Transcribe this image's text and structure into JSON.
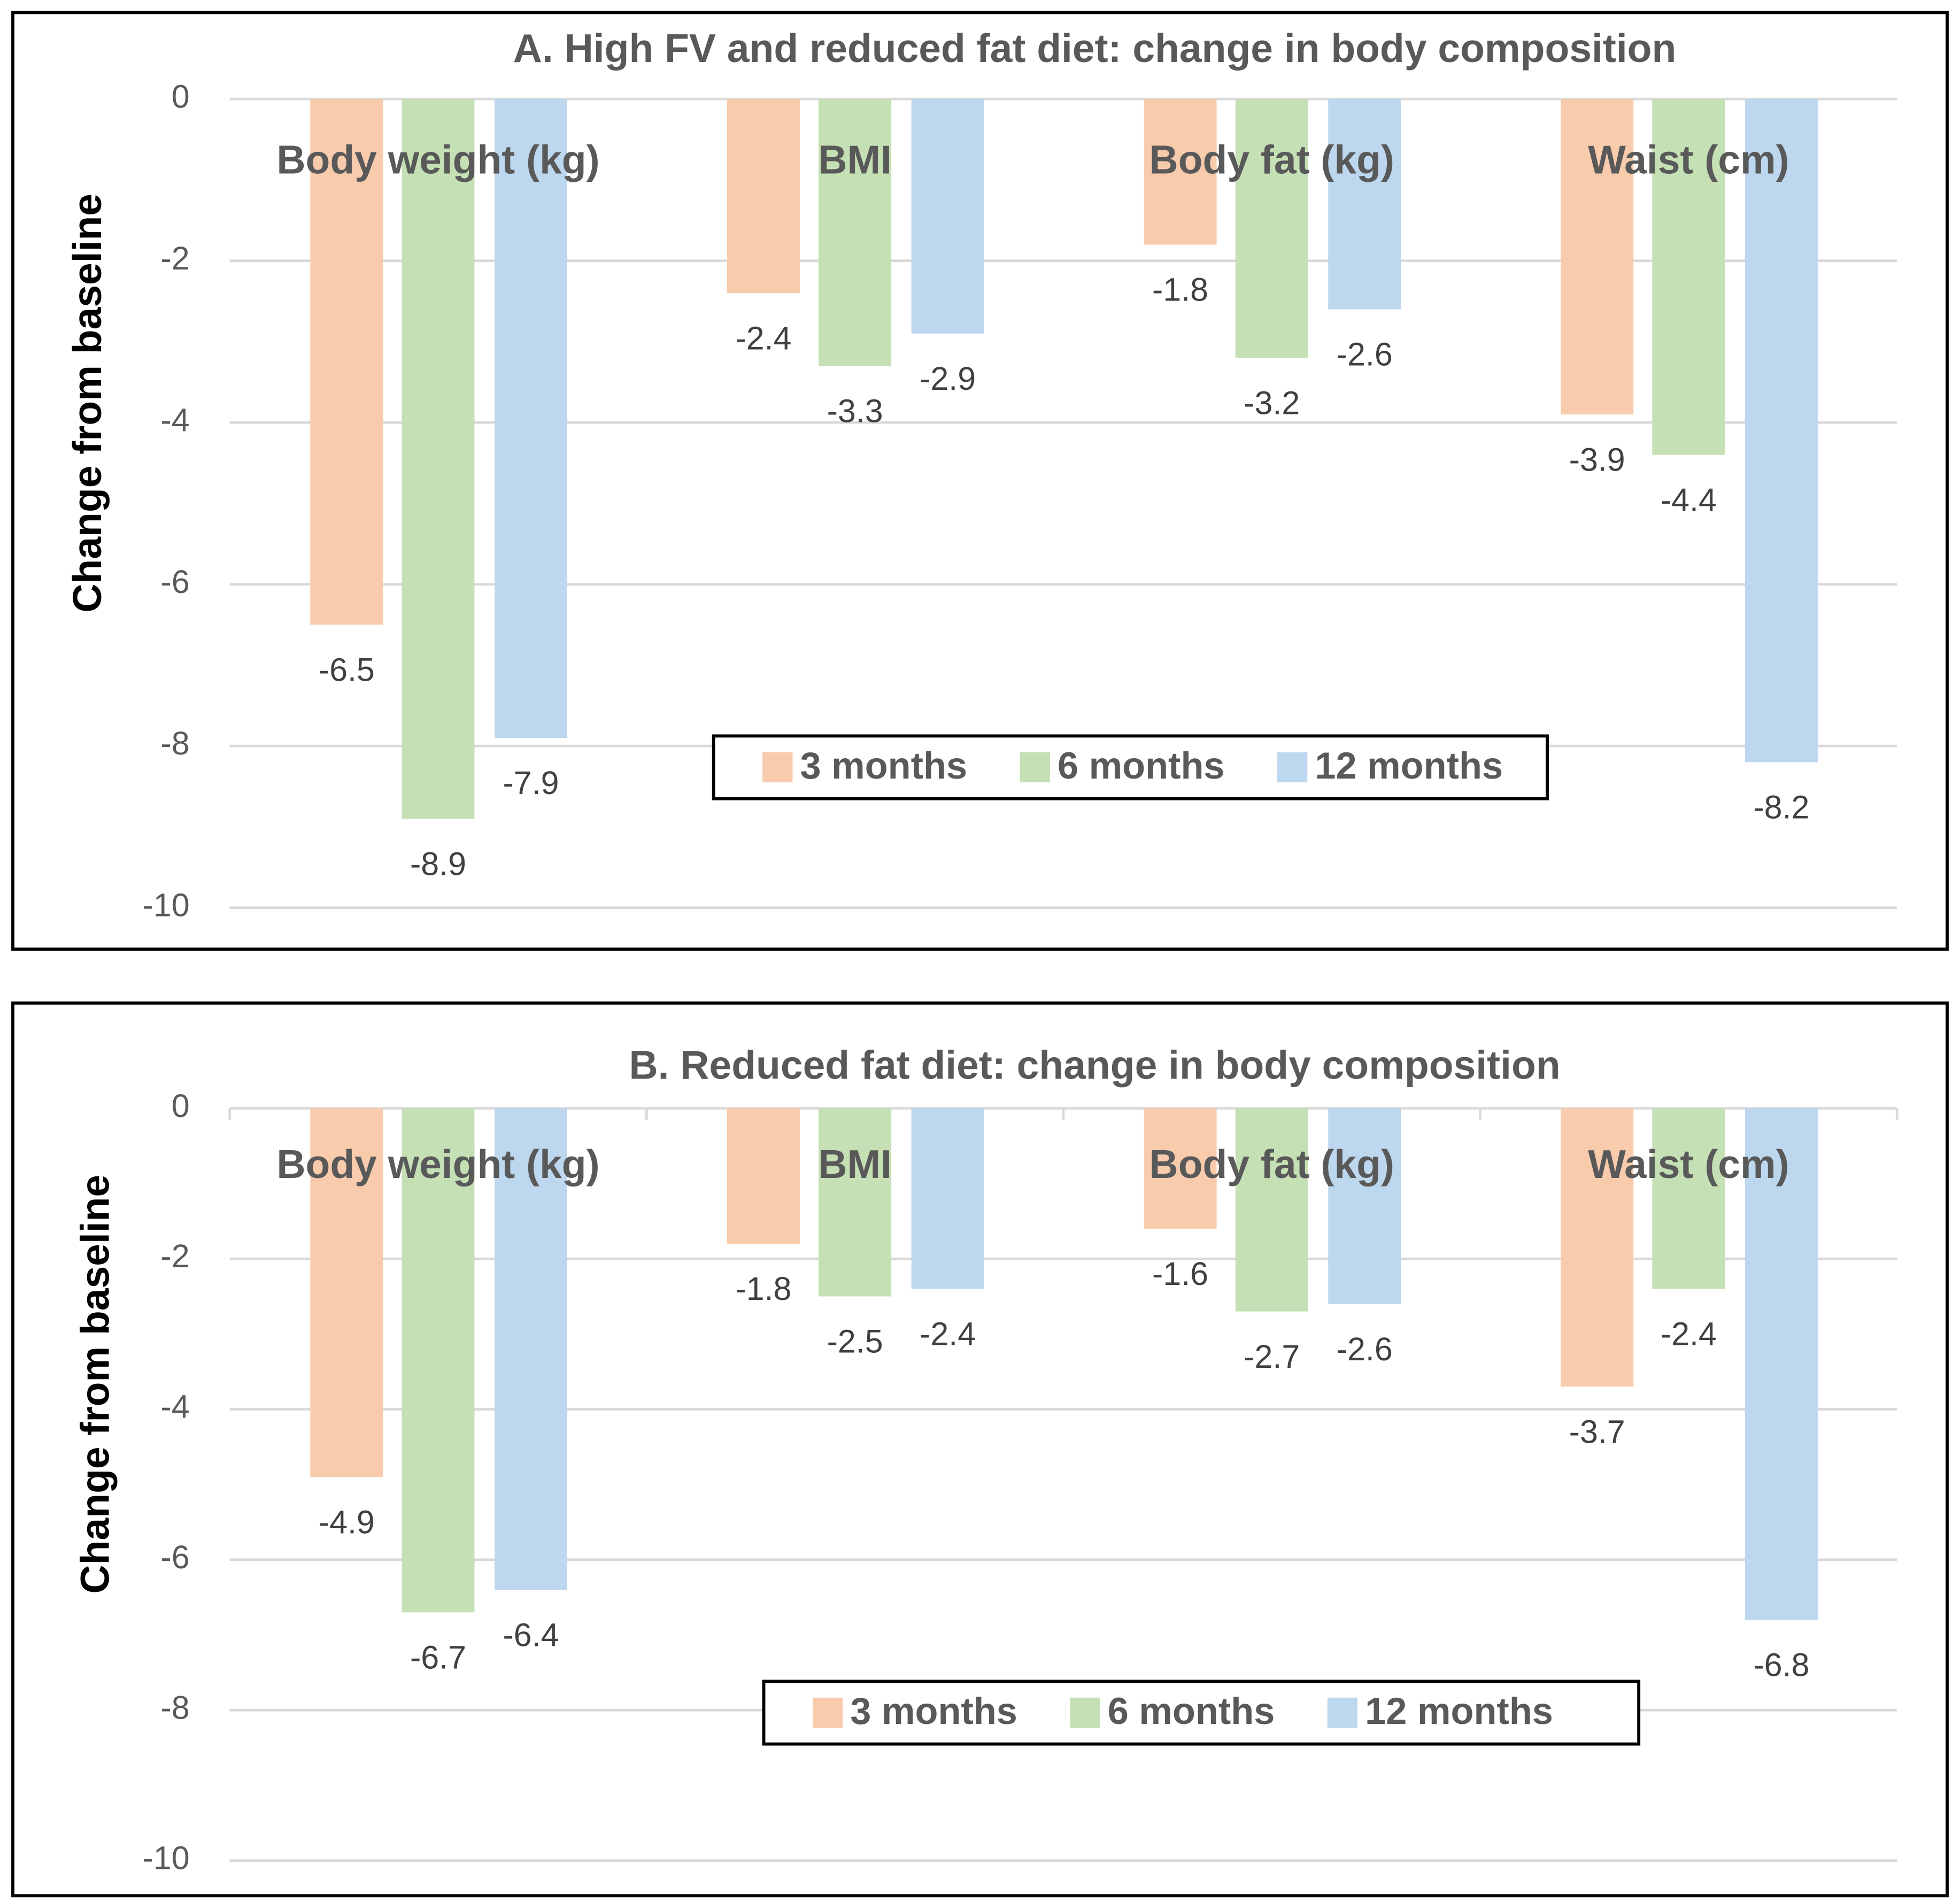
{
  "chart_data": [
    {
      "type": "bar",
      "title": "A. High FV and reduced fat diet: change in body composition",
      "y_label": "Change from baseline",
      "categories": [
        "Body weight (kg)",
        "BMI",
        "Body fat (kg)",
        "Waist (cm)"
      ],
      "series": [
        {
          "name": "3 months",
          "color": "#f8cbad",
          "values": [
            -6.5,
            -2.4,
            -1.8,
            -3.9
          ]
        },
        {
          "name": "6 months",
          "color": "#c5e0b4",
          "values": [
            -8.9,
            -3.3,
            -3.2,
            -4.4
          ]
        },
        {
          "name": "12 months",
          "color": "#bdd7ee",
          "values": [
            -7.9,
            -2.9,
            -2.6,
            -8.2
          ]
        }
      ],
      "ylim": [
        -10,
        0
      ],
      "yticks": [
        0,
        -2,
        -4,
        -6,
        -8,
        -10
      ],
      "grid": true
    },
    {
      "type": "bar",
      "title": "B. Reduced fat diet: change in body composition",
      "y_label": "Change from baseline",
      "categories": [
        "Body weight (kg)",
        "BMI",
        "Body fat (kg)",
        "Waist (cm)"
      ],
      "series": [
        {
          "name": "3 months",
          "color": "#f8cbad",
          "values": [
            -4.9,
            -1.8,
            -1.6,
            -3.7
          ]
        },
        {
          "name": "6 months",
          "color": "#c5e0b4",
          "values": [
            -6.7,
            -2.5,
            -2.7,
            -2.4
          ]
        },
        {
          "name": "12 months",
          "color": "#bdd7ee",
          "values": [
            -6.4,
            -2.4,
            -2.6,
            -6.8
          ]
        }
      ],
      "ylim": [
        -10,
        0
      ],
      "yticks": [
        0,
        -2,
        -4,
        -6,
        -8,
        -10
      ],
      "grid": true
    }
  ]
}
